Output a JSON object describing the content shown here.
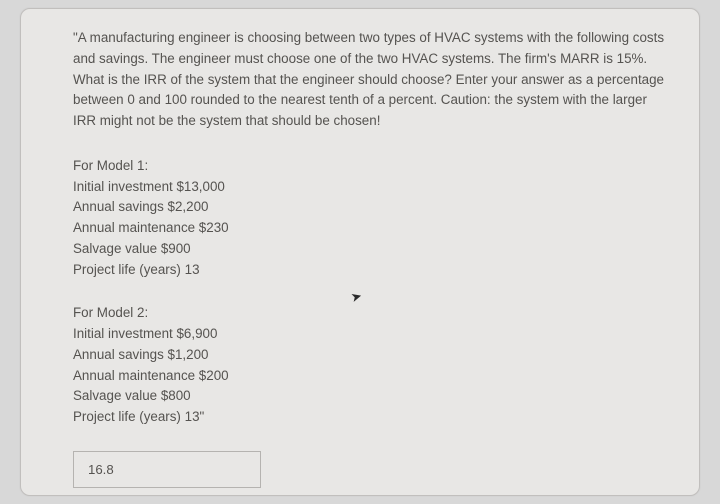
{
  "question": {
    "text": "\"A manufacturing engineer is choosing between two types of HVAC systems with the following costs and savings. The engineer must choose one of the two HVAC systems. The firm's MARR is 15%. What is the IRR of the system that the engineer should choose? Enter your answer as a percentage between 0 and 100 rounded to the nearest tenth of a percent. Caution: the system with the larger IRR might not be the system that should be chosen!"
  },
  "model1": {
    "header": "For Model 1:",
    "lines": [
      "Initial investment $13,000",
      "Annual savings $2,200",
      "Annual maintenance $230",
      "Salvage value $900",
      "Project life (years) 13"
    ]
  },
  "model2": {
    "header": "For Model 2:",
    "lines": [
      "Initial investment $6,900",
      "Annual savings $1,200",
      "Annual maintenance $200",
      "Salvage value $800",
      "Project life (years) 13\""
    ]
  },
  "answer": {
    "value": "16.8"
  },
  "colors": {
    "page_bg": "#d8d8d8",
    "card_bg": "#e8e7e5",
    "card_border": "#c1bfbd",
    "text": "#555350",
    "input_border": "#b5b3b0"
  }
}
